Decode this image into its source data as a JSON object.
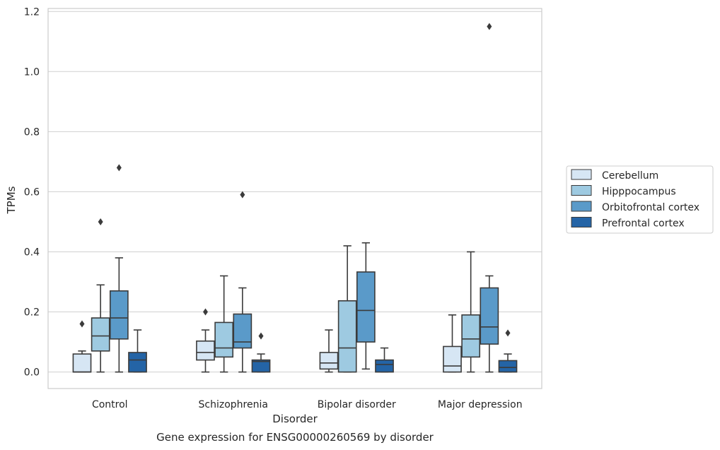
{
  "caption": "Gene expression for ENSG00000260569 by disorder",
  "chart_data": {
    "type": "box",
    "title": "",
    "xlabel": "Disorder",
    "ylabel": "TPMs",
    "ylim": [
      -0.055,
      1.21
    ],
    "yticks": [
      "0.0",
      "0.2",
      "0.4",
      "0.6",
      "0.8",
      "1.0",
      "1.2"
    ],
    "grid": "horizontal",
    "legend_position": "right",
    "categories": [
      "Control",
      "Schizophrenia",
      "Bipolar disorder",
      "Major depression"
    ],
    "series": [
      {
        "name": "Cerebellum",
        "color": "#d6e6f4",
        "boxes": [
          {
            "whislo": 0.0,
            "q1": 0.0,
            "med": 0.0,
            "q3": 0.06,
            "whishi": 0.07,
            "fliers": [
              0.16
            ]
          },
          {
            "whislo": 0.0,
            "q1": 0.04,
            "med": 0.065,
            "q3": 0.103,
            "whishi": 0.14,
            "fliers": [
              0.2
            ]
          },
          {
            "whislo": 0.0,
            "q1": 0.01,
            "med": 0.03,
            "q3": 0.065,
            "whishi": 0.14,
            "fliers": []
          },
          {
            "whislo": 0.0,
            "q1": 0.0,
            "med": 0.02,
            "q3": 0.085,
            "whishi": 0.19,
            "fliers": []
          }
        ]
      },
      {
        "name": "Hipppocampus",
        "color": "#9ecae1",
        "boxes": [
          {
            "whislo": 0.0,
            "q1": 0.07,
            "med": 0.12,
            "q3": 0.18,
            "whishi": 0.29,
            "fliers": [
              0.5
            ]
          },
          {
            "whislo": 0.0,
            "q1": 0.05,
            "med": 0.08,
            "q3": 0.165,
            "whishi": 0.32,
            "fliers": []
          },
          {
            "whislo": 0.0,
            "q1": 0.0,
            "med": 0.08,
            "q3": 0.237,
            "whishi": 0.42,
            "fliers": []
          },
          {
            "whislo": 0.0,
            "q1": 0.05,
            "med": 0.11,
            "q3": 0.19,
            "whishi": 0.4,
            "fliers": []
          }
        ]
      },
      {
        "name": "Orbitofrontal cortex",
        "color": "#5a9ac9",
        "boxes": [
          {
            "whislo": 0.0,
            "q1": 0.11,
            "med": 0.18,
            "q3": 0.27,
            "whishi": 0.38,
            "fliers": [
              0.68
            ]
          },
          {
            "whislo": 0.0,
            "q1": 0.08,
            "med": 0.1,
            "q3": 0.193,
            "whishi": 0.28,
            "fliers": [
              0.59
            ]
          },
          {
            "whislo": 0.01,
            "q1": 0.1,
            "med": 0.205,
            "q3": 0.333,
            "whishi": 0.43,
            "fliers": []
          },
          {
            "whislo": 0.0,
            "q1": 0.093,
            "med": 0.15,
            "q3": 0.28,
            "whishi": 0.32,
            "fliers": [
              1.15
            ]
          }
        ]
      },
      {
        "name": "Prefrontal cortex",
        "color": "#2464a6",
        "boxes": [
          {
            "whislo": 0.0,
            "q1": 0.0,
            "med": 0.04,
            "q3": 0.065,
            "whishi": 0.14,
            "fliers": []
          },
          {
            "whislo": 0.0,
            "q1": 0.0,
            "med": 0.035,
            "q3": 0.04,
            "whishi": 0.06,
            "fliers": [
              0.12
            ]
          },
          {
            "whislo": 0.0,
            "q1": 0.0,
            "med": 0.025,
            "q3": 0.04,
            "whishi": 0.08,
            "fliers": []
          },
          {
            "whislo": 0.0,
            "q1": 0.0,
            "med": 0.015,
            "q3": 0.038,
            "whishi": 0.06,
            "fliers": [
              0.13
            ]
          }
        ]
      }
    ]
  }
}
